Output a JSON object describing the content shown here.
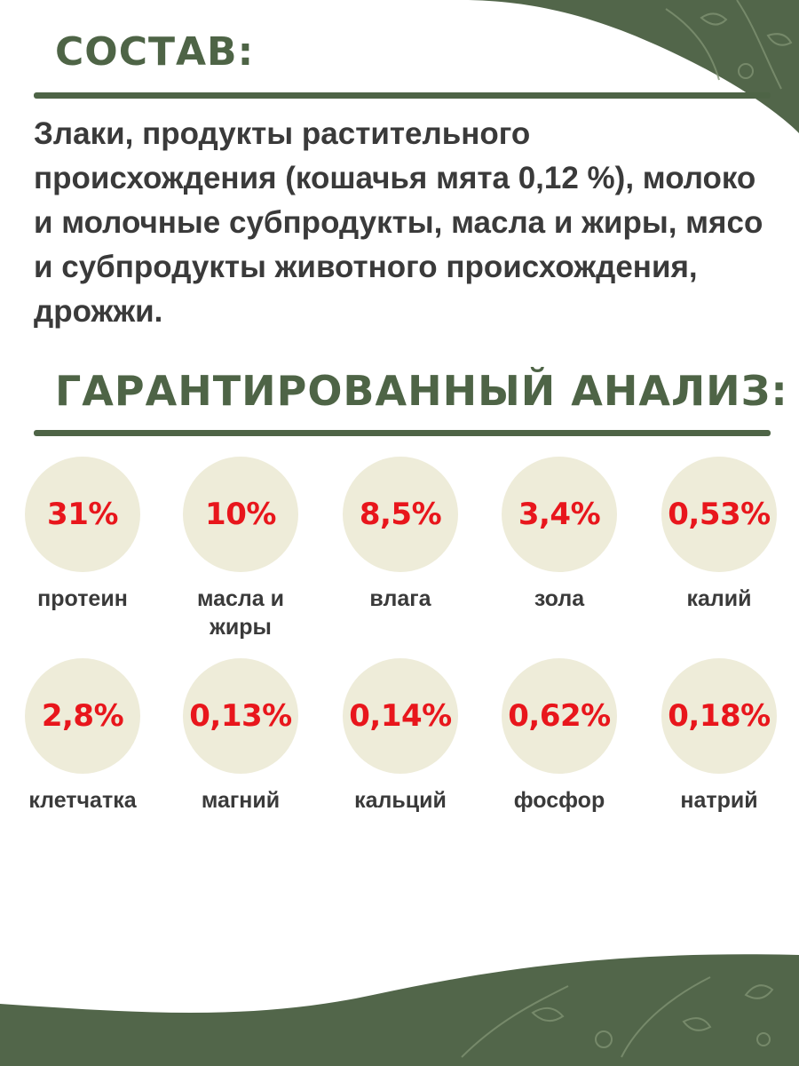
{
  "composition": {
    "title": "СОСТАВ:",
    "text": "Злаки, продукты растительного происхождения (кошачья мята 0,12 %), молоко и молочные субпродукты, масла и жиры, мясо и субпродукты животного происхождения, дрожжи."
  },
  "analysis": {
    "title": "ГАРАНТИРОВАННЫЙ АНАЛИЗ:",
    "items": [
      {
        "value": "31%",
        "label": "протеин"
      },
      {
        "value": "10%",
        "label": "масла и жиры"
      },
      {
        "value": "8,5%",
        "label": "влага"
      },
      {
        "value": "3,4%",
        "label": "зола"
      },
      {
        "value": "0,53%",
        "label": "калий"
      },
      {
        "value": "2,8%",
        "label": "клетчатка"
      },
      {
        "value": "0,13%",
        "label": "магний"
      },
      {
        "value": "0,14%",
        "label": "кальций"
      },
      {
        "value": "0,62%",
        "label": "фосфор"
      },
      {
        "value": "0,18%",
        "label": "натрий"
      }
    ]
  },
  "colors": {
    "accent_green": "#4e6446",
    "value_red": "#e8161c",
    "circle_fill": "#eeecd9",
    "text_dark": "#3a3a3a"
  }
}
